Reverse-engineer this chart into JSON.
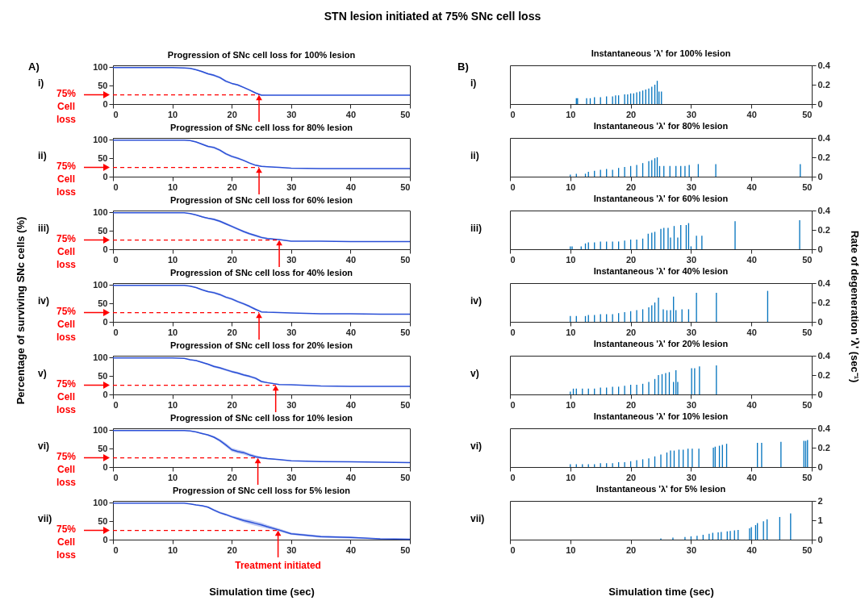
{
  "chart_data": [
    {
      "type": "line",
      "title": "Progression of SNc cell loss for 100% lesion",
      "annotations": [
        "STN lesion initiated at 75% SNc cell loss",
        "A)",
        "i)"
      ],
      "xlim": [
        0,
        50
      ],
      "xticks": [
        0,
        10,
        20,
        30,
        40,
        50
      ],
      "ylim": [
        0,
        105
      ],
      "yticks": [
        0,
        50,
        100
      ],
      "x": [
        0,
        5,
        10,
        12,
        13,
        14,
        15,
        16,
        17,
        18,
        19,
        20,
        21,
        22,
        23,
        24,
        25,
        26,
        28,
        30,
        35,
        40,
        45,
        50
      ],
      "series": [
        {
          "color": "#2a4fd6",
          "values": [
            99,
            99,
            99,
            98,
            97,
            93,
            88,
            82,
            78,
            72,
            62,
            56,
            52,
            45,
            38,
            30,
            24,
            24,
            24,
            24,
            24,
            24,
            24,
            24
          ],
          "lower": [
            99,
            99,
            99,
            98,
            96,
            92,
            86,
            80,
            75,
            69,
            59,
            54,
            50,
            43,
            36,
            28,
            23,
            24,
            24,
            24,
            24,
            24,
            24,
            24
          ],
          "upper": [
            99,
            99,
            99,
            98,
            98,
            94,
            90,
            84,
            81,
            75,
            65,
            58,
            54,
            47,
            40,
            32,
            25,
            24,
            24,
            24,
            24,
            24,
            24,
            24
          ]
        }
      ],
      "ref_lines": [
        {
          "axis": "y",
          "value": 25,
          "label": "75% Cell loss",
          "color": "#ff0000",
          "line_style": "dashed"
        },
        {
          "axis": "x",
          "value": 24.6,
          "label": null,
          "color": "#ff0000"
        }
      ]
    },
    {
      "type": "line",
      "title": "Progression of SNc cell loss for 80% lesion",
      "annotations": [
        "ii)"
      ],
      "xlim": [
        0,
        50
      ],
      "xticks": [
        0,
        10,
        20,
        30,
        40,
        50
      ],
      "ylim": [
        0,
        105
      ],
      "yticks": [
        0,
        50,
        100
      ],
      "x": [
        0,
        5,
        10,
        12,
        13,
        14,
        15,
        16,
        17,
        18,
        19,
        20,
        21,
        22,
        23,
        24,
        25,
        26,
        28,
        30,
        35,
        40,
        45,
        50
      ],
      "series": [
        {
          "color": "#2a4fd6",
          "values": [
            99,
            99,
            99,
            99,
            98,
            94,
            88,
            82,
            79,
            72,
            62,
            55,
            50,
            44,
            37,
            31,
            28,
            27,
            25,
            23,
            22,
            22,
            22,
            22
          ],
          "lower": [
            99,
            99,
            99,
            99,
            97,
            93,
            86,
            80,
            76,
            69,
            59,
            52,
            47,
            42,
            35,
            29,
            26,
            26,
            25,
            23,
            22,
            22,
            22,
            22
          ],
          "upper": [
            99,
            99,
            99,
            99,
            99,
            95,
            90,
            84,
            82,
            75,
            65,
            58,
            53,
            46,
            39,
            33,
            30,
            28,
            25,
            23,
            22,
            22,
            22,
            22
          ]
        }
      ],
      "ref_lines": [
        {
          "axis": "y",
          "value": 25,
          "label": "75% Cell loss",
          "color": "#ff0000",
          "line_style": "dashed"
        },
        {
          "axis": "x",
          "value": 24.6,
          "label": null,
          "color": "#ff0000"
        }
      ]
    },
    {
      "type": "line",
      "title": "Progression of SNc cell loss for 60% lesion",
      "annotations": [
        "iii)"
      ],
      "xlim": [
        0,
        50
      ],
      "xticks": [
        0,
        10,
        20,
        30,
        40,
        50
      ],
      "ylim": [
        0,
        105
      ],
      "yticks": [
        0,
        50,
        100
      ],
      "x": [
        0,
        5,
        10,
        12,
        13,
        14,
        15,
        16,
        17,
        18,
        19,
        20,
        21,
        22,
        23,
        24,
        25,
        26,
        28,
        30,
        35,
        40,
        45,
        50
      ],
      "series": [
        {
          "color": "#2a4fd6",
          "values": [
            99,
            99,
            99,
            99,
            97,
            93,
            88,
            84,
            81,
            76,
            69,
            62,
            55,
            48,
            42,
            37,
            32,
            29,
            26,
            22,
            22,
            21,
            21,
            21
          ],
          "lower": [
            99,
            99,
            99,
            99,
            96,
            92,
            86,
            82,
            78,
            73,
            66,
            59,
            52,
            45,
            39,
            34,
            29,
            27,
            25,
            22,
            22,
            21,
            21,
            21
          ],
          "upper": [
            99,
            99,
            99,
            99,
            98,
            94,
            90,
            86,
            84,
            79,
            72,
            65,
            58,
            51,
            45,
            40,
            35,
            31,
            27,
            22,
            22,
            21,
            21,
            21
          ]
        }
      ],
      "ref_lines": [
        {
          "axis": "y",
          "value": 25,
          "label": "75% Cell loss",
          "color": "#ff0000",
          "line_style": "dashed"
        },
        {
          "axis": "x",
          "value": 28,
          "label": null,
          "color": "#ff0000"
        }
      ]
    },
    {
      "type": "line",
      "title": "Progression of SNc cell loss for 40% lesion",
      "ylabel": "Percentage of surviving SNc cells (%)",
      "annotations": [
        "iv)"
      ],
      "xlim": [
        0,
        50
      ],
      "xticks": [
        0,
        10,
        20,
        30,
        40,
        50
      ],
      "ylim": [
        0,
        105
      ],
      "yticks": [
        0,
        50,
        100
      ],
      "x": [
        0,
        5,
        10,
        12,
        13,
        14,
        15,
        16,
        17,
        18,
        19,
        20,
        21,
        22,
        23,
        24,
        25,
        26,
        28,
        30,
        35,
        40,
        45,
        50
      ],
      "series": [
        {
          "color": "#2a4fd6",
          "values": [
            99,
            99,
            99,
            99,
            97,
            93,
            87,
            82,
            79,
            74,
            67,
            62,
            55,
            49,
            42,
            34,
            27,
            26,
            25,
            24,
            22,
            22,
            21,
            21
          ],
          "lower": [
            99,
            99,
            99,
            99,
            96,
            92,
            85,
            80,
            76,
            71,
            64,
            59,
            52,
            46,
            39,
            31,
            25,
            25,
            25,
            24,
            22,
            22,
            21,
            21
          ],
          "upper": [
            99,
            99,
            99,
            99,
            98,
            94,
            89,
            84,
            82,
            77,
            70,
            65,
            58,
            52,
            45,
            37,
            29,
            27,
            25,
            24,
            22,
            22,
            21,
            21
          ]
        }
      ],
      "ref_lines": [
        {
          "axis": "y",
          "value": 25,
          "label": "75% Cell loss",
          "color": "#ff0000",
          "line_style": "dashed"
        },
        {
          "axis": "x",
          "value": 24.6,
          "label": null,
          "color": "#ff0000"
        }
      ]
    },
    {
      "type": "line",
      "title": "Progression of SNc cell loss for 20% lesion",
      "annotations": [
        "v)"
      ],
      "xlim": [
        0,
        50
      ],
      "xticks": [
        0,
        10,
        20,
        30,
        40,
        50
      ],
      "ylim": [
        0,
        105
      ],
      "yticks": [
        0,
        50,
        100
      ],
      "x": [
        0,
        5,
        10,
        12,
        13,
        14,
        15,
        16,
        17,
        18,
        19,
        20,
        21,
        22,
        23,
        24,
        25,
        26,
        28,
        30,
        35,
        40,
        45,
        50
      ],
      "series": [
        {
          "color": "#2a4fd6",
          "values": [
            99,
            99,
            99,
            98,
            94,
            92,
            87,
            82,
            76,
            72,
            67,
            62,
            58,
            53,
            49,
            44,
            35,
            32,
            27,
            26,
            23,
            22,
            22,
            22
          ],
          "lower": [
            99,
            99,
            99,
            98,
            93,
            91,
            85,
            80,
            73,
            69,
            64,
            59,
            55,
            50,
            46,
            41,
            32,
            30,
            26,
            26,
            23,
            22,
            22,
            22
          ],
          "upper": [
            99,
            99,
            99,
            98,
            95,
            93,
            89,
            84,
            79,
            75,
            70,
            65,
            61,
            56,
            52,
            47,
            38,
            34,
            28,
            26,
            23,
            22,
            22,
            22
          ]
        }
      ],
      "ref_lines": [
        {
          "axis": "y",
          "value": 25,
          "label": "75% Cell loss",
          "color": "#ff0000",
          "line_style": "dashed"
        },
        {
          "axis": "x",
          "value": 27.4,
          "label": null,
          "color": "#ff0000"
        }
      ]
    },
    {
      "type": "line",
      "title": "Progression of SNc cell loss for 10% lesion",
      "annotations": [
        "vi)"
      ],
      "xlim": [
        0,
        50
      ],
      "xticks": [
        0,
        10,
        20,
        30,
        40,
        50
      ],
      "ylim": [
        0,
        105
      ],
      "yticks": [
        0,
        50,
        100
      ],
      "x": [
        0,
        5,
        10,
        12,
        13,
        14,
        15,
        16,
        17,
        18,
        19,
        20,
        21,
        22,
        23,
        24,
        25,
        26,
        28,
        30,
        35,
        40,
        45,
        50
      ],
      "series": [
        {
          "color": "#2a4fd6",
          "values": [
            99,
            99,
            99,
            99,
            98,
            95,
            91,
            87,
            81,
            72,
            60,
            47,
            42,
            39,
            33,
            28,
            25,
            23,
            20,
            17,
            15,
            14,
            13,
            12
          ],
          "lower": [
            99,
            99,
            99,
            99,
            97,
            94,
            89,
            85,
            78,
            68,
            55,
            42,
            37,
            34,
            29,
            24,
            22,
            21,
            19,
            17,
            15,
            14,
            13,
            12
          ],
          "upper": [
            99,
            99,
            99,
            99,
            99,
            96,
            93,
            89,
            84,
            76,
            65,
            52,
            47,
            44,
            37,
            32,
            28,
            25,
            21,
            17,
            15,
            14,
            13,
            12
          ]
        }
      ],
      "ref_lines": [
        {
          "axis": "y",
          "value": 25,
          "label": "75% Cell loss",
          "color": "#ff0000",
          "line_style": "dashed"
        },
        {
          "axis": "x",
          "value": 24.4,
          "label": null,
          "color": "#ff0000"
        }
      ]
    },
    {
      "type": "line",
      "title": "Progression of SNc cell loss for 5% lesion",
      "xlabel": "Simulation time (sec)",
      "annotations": [
        "vii)"
      ],
      "xlim": [
        0,
        50
      ],
      "xticks": [
        0,
        10,
        20,
        30,
        40,
        50
      ],
      "ylim": [
        0,
        105
      ],
      "yticks": [
        0,
        50,
        100
      ],
      "x": [
        0,
        5,
        10,
        12,
        13,
        14,
        15,
        16,
        17,
        18,
        19,
        20,
        21,
        22,
        23,
        24,
        25,
        26,
        28,
        30,
        35,
        40,
        45,
        50
      ],
      "series": [
        {
          "color": "#2a4fd6",
          "values": [
            99,
            99,
            99,
            99,
            97,
            94,
            92,
            88,
            80,
            73,
            68,
            62,
            57,
            52,
            48,
            44,
            40,
            35,
            26,
            16,
            8,
            6,
            2,
            1
          ],
          "lower": [
            99,
            99,
            99,
            99,
            96,
            93,
            90,
            86,
            77,
            70,
            65,
            59,
            53,
            47,
            42,
            38,
            34,
            30,
            22,
            13,
            5,
            3,
            1,
            0
          ],
          "upper": [
            99,
            99,
            99,
            99,
            98,
            95,
            94,
            90,
            83,
            76,
            71,
            65,
            61,
            57,
            54,
            50,
            46,
            40,
            30,
            19,
            11,
            8,
            3,
            2
          ]
        }
      ],
      "ref_lines": [
        {
          "axis": "y",
          "value": 25,
          "label": "75% Cell loss",
          "color": "#ff0000",
          "line_style": "dashed"
        },
        {
          "axis": "x",
          "value": 27.8,
          "label": "Treatment initiated",
          "color": "#ff0000"
        }
      ]
    },
    {
      "type": "bar",
      "title": "Instantaneous 'λ' for 100% lesion",
      "annotations": [
        "B)",
        "i)"
      ],
      "xlim": [
        0,
        50
      ],
      "xticks": [
        0,
        10,
        20,
        30,
        40,
        50
      ],
      "y2lim": [
        0,
        0.4
      ],
      "y2ticks": [
        0,
        0.2,
        0.4
      ],
      "x": [
        11,
        11.2,
        12.7,
        13.3,
        14,
        15,
        16,
        17,
        17.5,
        18,
        19,
        19.5,
        20,
        20.5,
        21,
        21.5,
        22,
        22.5,
        23,
        23.5,
        24,
        24.4,
        24.7,
        25.1
      ],
      "series": [
        {
          "color": "#0072bd",
          "axis": "y2",
          "values": [
            0.06,
            0.06,
            0.06,
            0.06,
            0.07,
            0.07,
            0.08,
            0.08,
            0.09,
            0.09,
            0.1,
            0.1,
            0.11,
            0.11,
            0.12,
            0.13,
            0.14,
            0.15,
            0.16,
            0.18,
            0.2,
            0.24,
            0.13,
            0.13
          ]
        }
      ]
    },
    {
      "type": "bar",
      "title": "Instantaneous 'λ' for 80% lesion",
      "annotations": [
        "ii)"
      ],
      "xlim": [
        0,
        50
      ],
      "xticks": [
        0,
        10,
        20,
        30,
        40,
        50
      ],
      "y2lim": [
        0,
        0.4
      ],
      "y2ticks": [
        0,
        0.2,
        0.4
      ],
      "x": [
        10,
        11,
        12.5,
        13,
        14,
        15,
        16,
        17,
        18,
        19,
        20,
        21,
        22,
        23,
        23.5,
        24,
        24.4,
        24.8,
        25.5,
        26.5,
        27.5,
        28.3,
        29,
        29.7,
        31.2,
        34.1,
        48.1
      ],
      "series": [
        {
          "color": "#0072bd",
          "axis": "y2",
          "values": [
            0.02,
            0.03,
            0.03,
            0.05,
            0.06,
            0.07,
            0.08,
            0.07,
            0.09,
            0.1,
            0.11,
            0.12,
            0.14,
            0.16,
            0.17,
            0.19,
            0.2,
            0.11,
            0.11,
            0.11,
            0.11,
            0.11,
            0.11,
            0.12,
            0.13,
            0.13,
            0.13
          ]
        }
      ]
    },
    {
      "type": "bar",
      "title": "Instantaneous 'λ' for 60% lesion",
      "annotations": [
        "iii)"
      ],
      "xlim": [
        0,
        50
      ],
      "xticks": [
        0,
        10,
        20,
        30,
        40,
        50
      ],
      "y2lim": [
        0,
        0.4
      ],
      "y2ticks": [
        0,
        0.2,
        0.4
      ],
      "x": [
        10,
        10.3,
        11.8,
        12.5,
        13,
        14,
        15,
        16,
        17,
        18,
        19,
        20,
        21,
        22,
        22.9,
        23.5,
        24,
        25,
        25.5,
        26.2,
        26.6,
        27.2,
        27.8,
        28.3,
        29.2,
        29.6,
        30,
        30.9,
        31.8,
        37.3,
        48
      ],
      "series": [
        {
          "color": "#0072bd",
          "axis": "y2",
          "values": [
            0.03,
            0.03,
            0.03,
            0.06,
            0.07,
            0.07,
            0.08,
            0.08,
            0.08,
            0.08,
            0.09,
            0.1,
            0.1,
            0.11,
            0.16,
            0.17,
            0.18,
            0.21,
            0.22,
            0.22,
            0.12,
            0.24,
            0.12,
            0.25,
            0.25,
            0.27,
            0.03,
            0.14,
            0.14,
            0.29,
            0.3
          ]
        }
      ]
    },
    {
      "type": "bar",
      "title": "Instantaneous 'λ' for 40% lesion",
      "y2label": "Rate of degeneration 'λ' (sec⁻¹)",
      "annotations": [
        "iv)"
      ],
      "xlim": [
        0,
        50
      ],
      "xticks": [
        0,
        10,
        20,
        30,
        40,
        50
      ],
      "y2lim": [
        0,
        0.4
      ],
      "y2ticks": [
        0,
        0.2,
        0.4
      ],
      "x": [
        10,
        11,
        12.5,
        13,
        14,
        15,
        16,
        17,
        18,
        19,
        20,
        21,
        22,
        23,
        23.5,
        24,
        24.6,
        25.4,
        26,
        26.6,
        27.1,
        27.5,
        28.5,
        29.6,
        30.9,
        34.2,
        42.7
      ],
      "series": [
        {
          "color": "#0072bd",
          "axis": "y2",
          "values": [
            0.06,
            0.06,
            0.06,
            0.07,
            0.07,
            0.08,
            0.08,
            0.08,
            0.09,
            0.1,
            0.11,
            0.12,
            0.13,
            0.15,
            0.17,
            0.2,
            0.25,
            0.13,
            0.12,
            0.12,
            0.26,
            0.12,
            0.13,
            0.13,
            0.3,
            0.3,
            0.32
          ]
        }
      ]
    },
    {
      "type": "bar",
      "title": "Instantaneous 'λ' for 20% lesion",
      "annotations": [
        "v)"
      ],
      "xlim": [
        0,
        50
      ],
      "xticks": [
        0,
        10,
        20,
        30,
        40,
        50
      ],
      "y2lim": [
        0,
        0.4
      ],
      "y2ticks": [
        0,
        0.2,
        0.4
      ],
      "x": [
        10,
        10.5,
        11,
        12,
        13,
        14,
        15,
        16,
        17,
        18,
        19,
        20,
        21,
        22,
        23,
        24,
        24.6,
        25.2,
        25.8,
        26.4,
        27.1,
        27.5,
        27.8,
        30.1,
        30.6,
        31.4,
        34.2
      ],
      "series": [
        {
          "color": "#0072bd",
          "axis": "y2",
          "values": [
            0.03,
            0.06,
            0.06,
            0.06,
            0.06,
            0.06,
            0.07,
            0.07,
            0.08,
            0.08,
            0.09,
            0.1,
            0.1,
            0.11,
            0.13,
            0.16,
            0.2,
            0.21,
            0.22,
            0.23,
            0.13,
            0.25,
            0.13,
            0.27,
            0.27,
            0.29,
            0.3
          ]
        }
      ]
    },
    {
      "type": "bar",
      "title": "Instantaneous 'λ' for 10% lesion",
      "annotations": [
        "vi)"
      ],
      "xlim": [
        0,
        50
      ],
      "xticks": [
        0,
        10,
        20,
        30,
        40,
        50
      ],
      "y2lim": [
        0,
        0.4
      ],
      "y2ticks": [
        0,
        0.2,
        0.4
      ],
      "x": [
        10,
        11,
        12,
        13,
        14,
        15,
        16,
        17,
        18,
        19,
        20,
        21,
        22,
        23,
        24,
        25,
        26,
        26.6,
        27.2,
        28,
        28.7,
        29.5,
        30.2,
        31.3,
        33.7,
        34,
        34.7,
        35.2,
        35.9,
        41,
        41.7,
        44.9,
        48.7,
        49,
        49.3
      ],
      "series": [
        {
          "color": "#0072bd",
          "axis": "y2",
          "values": [
            0.03,
            0.03,
            0.03,
            0.03,
            0.03,
            0.04,
            0.04,
            0.04,
            0.05,
            0.05,
            0.06,
            0.07,
            0.08,
            0.09,
            0.11,
            0.13,
            0.15,
            0.17,
            0.17,
            0.18,
            0.18,
            0.19,
            0.19,
            0.19,
            0.2,
            0.21,
            0.22,
            0.23,
            0.24,
            0.25,
            0.25,
            0.26,
            0.27,
            0.27,
            0.28
          ]
        }
      ]
    },
    {
      "type": "bar",
      "title": "Instantaneous 'λ' for 5% lesion",
      "xlabel": "Simulation time (sec)",
      "annotations": [
        "vii)"
      ],
      "xlim": [
        0,
        50
      ],
      "xticks": [
        0,
        10,
        20,
        30,
        40,
        50
      ],
      "y2lim": [
        0,
        2
      ],
      "y2ticks": [
        0,
        1,
        2
      ],
      "x": [
        25,
        27,
        29,
        30,
        31,
        32,
        33,
        33.6,
        34.5,
        35,
        36,
        36.5,
        37.2,
        37.8,
        39.7,
        40,
        40.7,
        41,
        42,
        42.6,
        44.7,
        46.5
      ],
      "series": [
        {
          "color": "#0072bd",
          "axis": "y2",
          "values": [
            0.06,
            0.1,
            0.14,
            0.17,
            0.2,
            0.25,
            0.3,
            0.35,
            0.37,
            0.4,
            0.43,
            0.45,
            0.48,
            0.5,
            0.58,
            0.65,
            0.75,
            0.85,
            0.95,
            1.05,
            1.17,
            1.35
          ]
        }
      ]
    }
  ]
}
